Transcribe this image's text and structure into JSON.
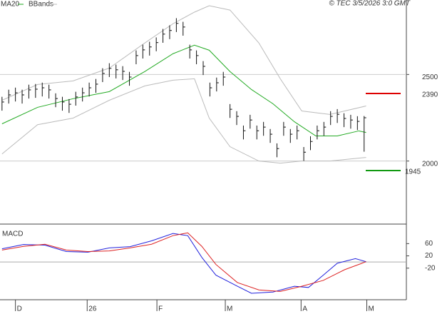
{
  "chart_data": [
    {
      "type": "ohlc",
      "copyright": "© TEC 3/5/2026 3:0 GMT",
      "bar_color": "#111111",
      "xlim": [
        -0.3,
        60.3
      ],
      "ylim": [
        1636,
        2930
      ],
      "yticks": [
        2000,
        2500
      ],
      "grid": true,
      "high": [
        2371,
        2412,
        2424,
        2412,
        2441,
        2445,
        2453,
        2441,
        2391,
        2371,
        2358,
        2400,
        2424,
        2453,
        2474,
        2536,
        2565,
        2557,
        2548,
        2515,
        2639,
        2672,
        2689,
        2714,
        2763,
        2784,
        2825,
        2804,
        2672,
        2639,
        2577,
        2453,
        2482,
        2515,
        2329,
        2288,
        2205,
        2267,
        2205,
        2226,
        2185,
        2102,
        2226,
        2185,
        2205,
        2081,
        2143,
        2205,
        2226,
        2288,
        2300,
        2276,
        2267,
        2259,
        2260
      ],
      "low": [
        2291,
        2332,
        2344,
        2332,
        2361,
        2365,
        2373,
        2361,
        2311,
        2291,
        2278,
        2320,
        2344,
        2373,
        2394,
        2456,
        2485,
        2477,
        2468,
        2435,
        2559,
        2592,
        2609,
        2634,
        2683,
        2704,
        2745,
        2724,
        2592,
        2559,
        2497,
        2373,
        2402,
        2435,
        2249,
        2208,
        2125,
        2187,
        2125,
        2146,
        2105,
        2022,
        2146,
        2105,
        2125,
        2001,
        2063,
        2125,
        2146,
        2208,
        2220,
        2196,
        2187,
        2179,
        2054
      ],
      "close": [
        2341,
        2382,
        2394,
        2382,
        2411,
        2415,
        2423,
        2411,
        2361,
        2341,
        2328,
        2370,
        2394,
        2423,
        2444,
        2506,
        2535,
        2527,
        2518,
        2485,
        2609,
        2642,
        2659,
        2684,
        2733,
        2754,
        2795,
        2774,
        2642,
        2609,
        2547,
        2423,
        2452,
        2485,
        2299,
        2258,
        2175,
        2237,
        2175,
        2196,
        2155,
        2072,
        2196,
        2155,
        2175,
        2051,
        2113,
        2175,
        2196,
        2258,
        2270,
        2246,
        2237,
        2229,
        2250
      ],
      "series": [
        {
          "name": "MA20",
          "color": "#22aa22",
          "x": [
            0,
            5.3,
            10.6,
            16,
            21.3,
            25.5,
            28.7,
            30.9,
            34,
            37.2,
            40.4,
            43.6,
            46.8,
            50,
            53.2,
            54.3
          ],
          "values": [
            2215,
            2310,
            2360,
            2401,
            2517,
            2620,
            2669,
            2640,
            2517,
            2413,
            2331,
            2227,
            2145,
            2145,
            2174,
            2165
          ]
        },
        {
          "name": "BBands",
          "color": "#bbbbbb",
          "x": [
            0,
            5.3,
            10.6,
            16,
            21.3,
            25.5,
            28.7,
            30.9,
            34,
            38.3,
            41.5,
            44.7,
            48.9,
            54.3
          ],
          "upper": [
            2351,
            2442,
            2463,
            2537,
            2682,
            2793,
            2860,
            2897,
            2872,
            2682,
            2475,
            2289,
            2269,
            2318
          ],
          "lower": [
            2041,
            2210,
            2248,
            2351,
            2434,
            2467,
            2475,
            2248,
            2083,
            2000,
            1988,
            2000,
            2000,
            2021
          ]
        }
      ],
      "levels": [
        {
          "value": 2390,
          "color": "#dd0000"
        },
        {
          "value": 1945,
          "color": "#119911"
        }
      ]
    },
    {
      "type": "line",
      "title": "MACD",
      "xlim": [
        -0.3,
        60.3
      ],
      "ylim": [
        -123,
        119
      ],
      "yticks": [
        60,
        20,
        -20
      ],
      "baseline": 0,
      "xticks": [
        {
          "value": 2,
          "label": "D"
        },
        {
          "value": 12.7,
          "label": "26"
        },
        {
          "value": 23.1,
          "label": "F"
        },
        {
          "value": 33.3,
          "label": "M"
        },
        {
          "value": 44.6,
          "label": "A"
        },
        {
          "value": 54.4,
          "label": "M"
        }
      ],
      "series": [
        {
          "color": "#2222dd",
          "x": [
            0,
            3.2,
            6.4,
            9.6,
            12.8,
            16,
            19.1,
            22.3,
            25.5,
            27.7,
            29.8,
            31.9,
            35.1,
            37.2,
            40.4,
            43.6,
            45.7,
            47.9,
            50,
            52.7,
            54.3
          ],
          "values": [
            43,
            57,
            55,
            34,
            32,
            46,
            50,
            69,
            93,
            86,
            15,
            -43,
            -79,
            -102,
            -98,
            -79,
            -83,
            -43,
            -4,
            11,
            1
          ]
        },
        {
          "color": "#dd2222",
          "x": [
            0,
            3.2,
            6.4,
            9.6,
            12.8,
            16,
            19.1,
            22.3,
            25.5,
            27.7,
            29.8,
            31.9,
            35.1,
            38.3,
            41.5,
            44.7,
            47.9,
            51.1,
            54.3
          ],
          "values": [
            39,
            51,
            58,
            39,
            34,
            36,
            46,
            58,
            86,
            95,
            51,
            -8,
            -67,
            -91,
            -96,
            -79,
            -60,
            -25,
            1
          ]
        }
      ]
    }
  ]
}
